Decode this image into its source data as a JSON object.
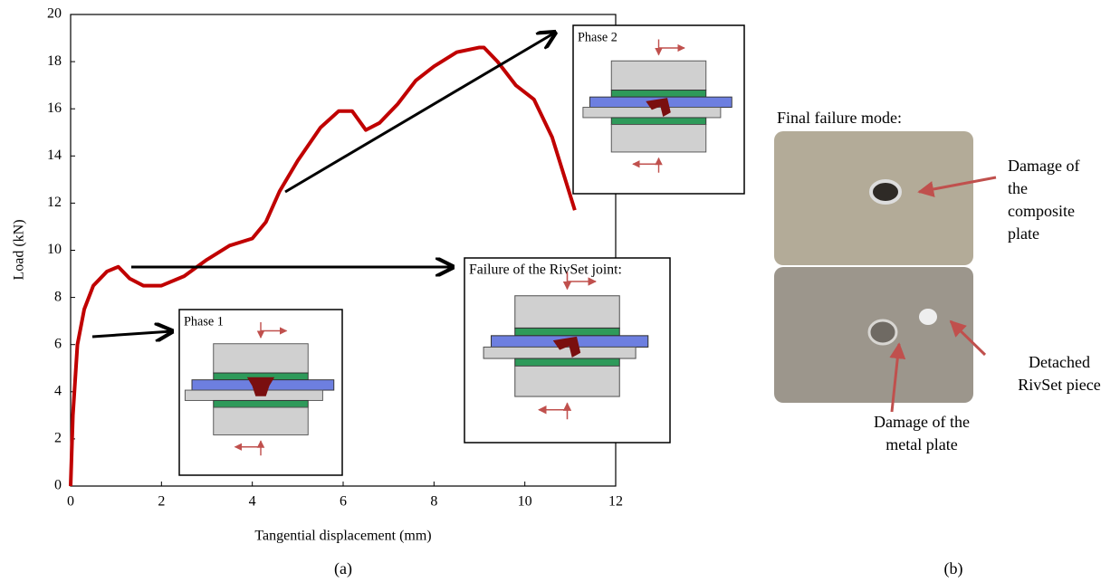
{
  "chart_data": {
    "type": "line",
    "x_label": "Tangential displacement (mm)",
    "y_label": "Load (kN)",
    "caption": "(a)",
    "xlim": [
      0,
      12
    ],
    "ylim": [
      0,
      20
    ],
    "xticks": [
      0,
      2,
      4,
      6,
      8,
      10,
      12
    ],
    "yticks": [
      0,
      2,
      4,
      6,
      8,
      10,
      12,
      14,
      16,
      18,
      20
    ],
    "x": [
      0,
      0.05,
      0.15,
      0.3,
      0.5,
      0.8,
      1.05,
      1.3,
      1.6,
      2,
      2.5,
      3,
      3.5,
      4,
      4.3,
      4.6,
      5,
      5.5,
      5.9,
      6.2,
      6.5,
      6.8,
      7.2,
      7.6,
      8,
      8.5,
      9,
      9.1,
      9.4,
      9.8,
      10.2,
      10.6,
      11.1
    ],
    "series": [
      {
        "color": "#c00000",
        "values": [
          0,
          3,
          6,
          7.5,
          8.5,
          9.1,
          9.3,
          8.8,
          8.5,
          8.5,
          8.9,
          9.6,
          10.2,
          10.5,
          11.2,
          12.5,
          13.8,
          15.2,
          15.9,
          15.9,
          15.1,
          15.4,
          16.2,
          17.2,
          17.8,
          18.4,
          18.6,
          18.6,
          18.0,
          17.0,
          16.4,
          14.8,
          11.7
        ]
      }
    ],
    "annotations": [
      "Phase 1",
      "Failure of the RivSet joint:",
      "Phase 2"
    ]
  },
  "panel_b": {
    "title": "Final failure mode:",
    "labels": [
      [
        "Damage of",
        "the",
        "composite",
        "plate"
      ],
      [
        "Detached",
        "RivSet piece"
      ],
      [
        "Damage of the",
        "metal plate"
      ]
    ],
    "caption": "(b)"
  }
}
